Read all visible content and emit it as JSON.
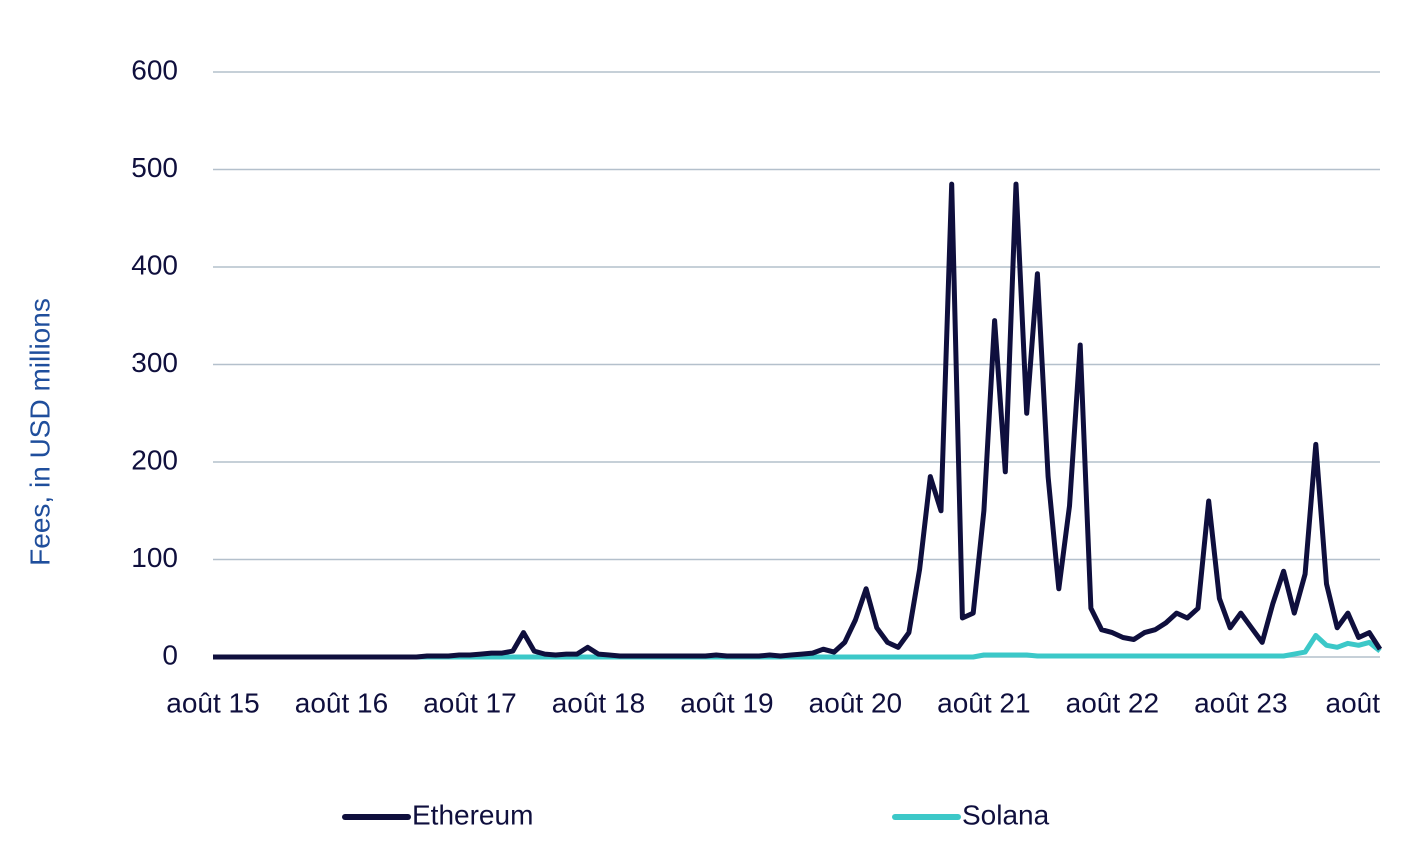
{
  "chart_data": {
    "type": "line",
    "y_label": "Fees, in USD millions",
    "categories": [
      "août 15",
      null,
      null,
      null,
      null,
      null,
      null,
      null,
      null,
      null,
      null,
      null,
      "août 16",
      null,
      null,
      null,
      null,
      null,
      null,
      null,
      null,
      null,
      null,
      null,
      "août 17",
      null,
      null,
      null,
      null,
      null,
      null,
      null,
      null,
      null,
      null,
      null,
      "août 18",
      null,
      null,
      null,
      null,
      null,
      null,
      null,
      null,
      null,
      null,
      null,
      "août 19",
      null,
      null,
      null,
      null,
      null,
      null,
      null,
      null,
      null,
      null,
      null,
      "août 20",
      null,
      null,
      null,
      null,
      null,
      null,
      null,
      null,
      null,
      null,
      null,
      "août 21",
      null,
      null,
      null,
      null,
      null,
      null,
      null,
      null,
      null,
      null,
      null,
      "août 22",
      null,
      null,
      null,
      null,
      null,
      null,
      null,
      null,
      null,
      null,
      null,
      "août 23",
      null,
      null,
      null,
      null,
      null,
      null,
      null,
      null,
      null,
      null,
      null,
      "août",
      null
    ],
    "series": [
      {
        "name": "Ethereum",
        "color": "#0f0f3d",
        "values": [
          0,
          0,
          0,
          0,
          0,
          0,
          0,
          0,
          0,
          0,
          0,
          0,
          0,
          0,
          0,
          0,
          0,
          0,
          0,
          0,
          1,
          1,
          1,
          2,
          2,
          3,
          4,
          4,
          6,
          25,
          6,
          3,
          2,
          3,
          3,
          10,
          3,
          2,
          1,
          1,
          1,
          1,
          1,
          1,
          1,
          1,
          1,
          2,
          1,
          1,
          1,
          1,
          2,
          1,
          2,
          3,
          4,
          8,
          5,
          15,
          38,
          70,
          30,
          15,
          10,
          25,
          90,
          185,
          150,
          485,
          40,
          45,
          150,
          345,
          190,
          485,
          250,
          393,
          185,
          70,
          155,
          320,
          50,
          28,
          25,
          20,
          18,
          25,
          28,
          35,
          45,
          40,
          50,
          160,
          60,
          30,
          45,
          30,
          15,
          55,
          88,
          45,
          85,
          218,
          75,
          30,
          45,
          20,
          25,
          8
        ]
      },
      {
        "name": "Solana",
        "color": "#3cc8c8",
        "values": [
          0,
          0,
          0,
          0,
          0,
          0,
          0,
          0,
          0,
          0,
          0,
          0,
          0,
          0,
          0,
          0,
          0,
          0,
          0,
          0,
          0,
          0,
          0,
          0,
          0,
          0,
          0,
          0,
          0,
          0,
          0,
          0,
          0,
          0,
          0,
          0,
          0,
          0,
          0,
          0,
          0,
          0,
          0,
          0,
          0,
          0,
          0,
          0,
          0,
          0,
          0,
          0,
          0,
          0,
          0,
          0,
          0,
          0,
          0,
          0,
          0,
          0,
          0,
          0,
          0,
          0,
          0,
          0,
          0,
          0,
          0,
          0,
          2,
          2,
          2,
          2,
          2,
          1,
          1,
          1,
          1,
          1,
          1,
          1,
          1,
          1,
          1,
          1,
          1,
          1,
          1,
          1,
          1,
          1,
          1,
          1,
          1,
          1,
          1,
          1,
          1,
          3,
          5,
          22,
          12,
          10,
          14,
          12,
          15,
          6
        ]
      }
    ],
    "ylim": [
      0,
      600
    ],
    "yticks": [
      0,
      100,
      200,
      300,
      400,
      500,
      600
    ],
    "grid": true,
    "legend": "bottom"
  }
}
